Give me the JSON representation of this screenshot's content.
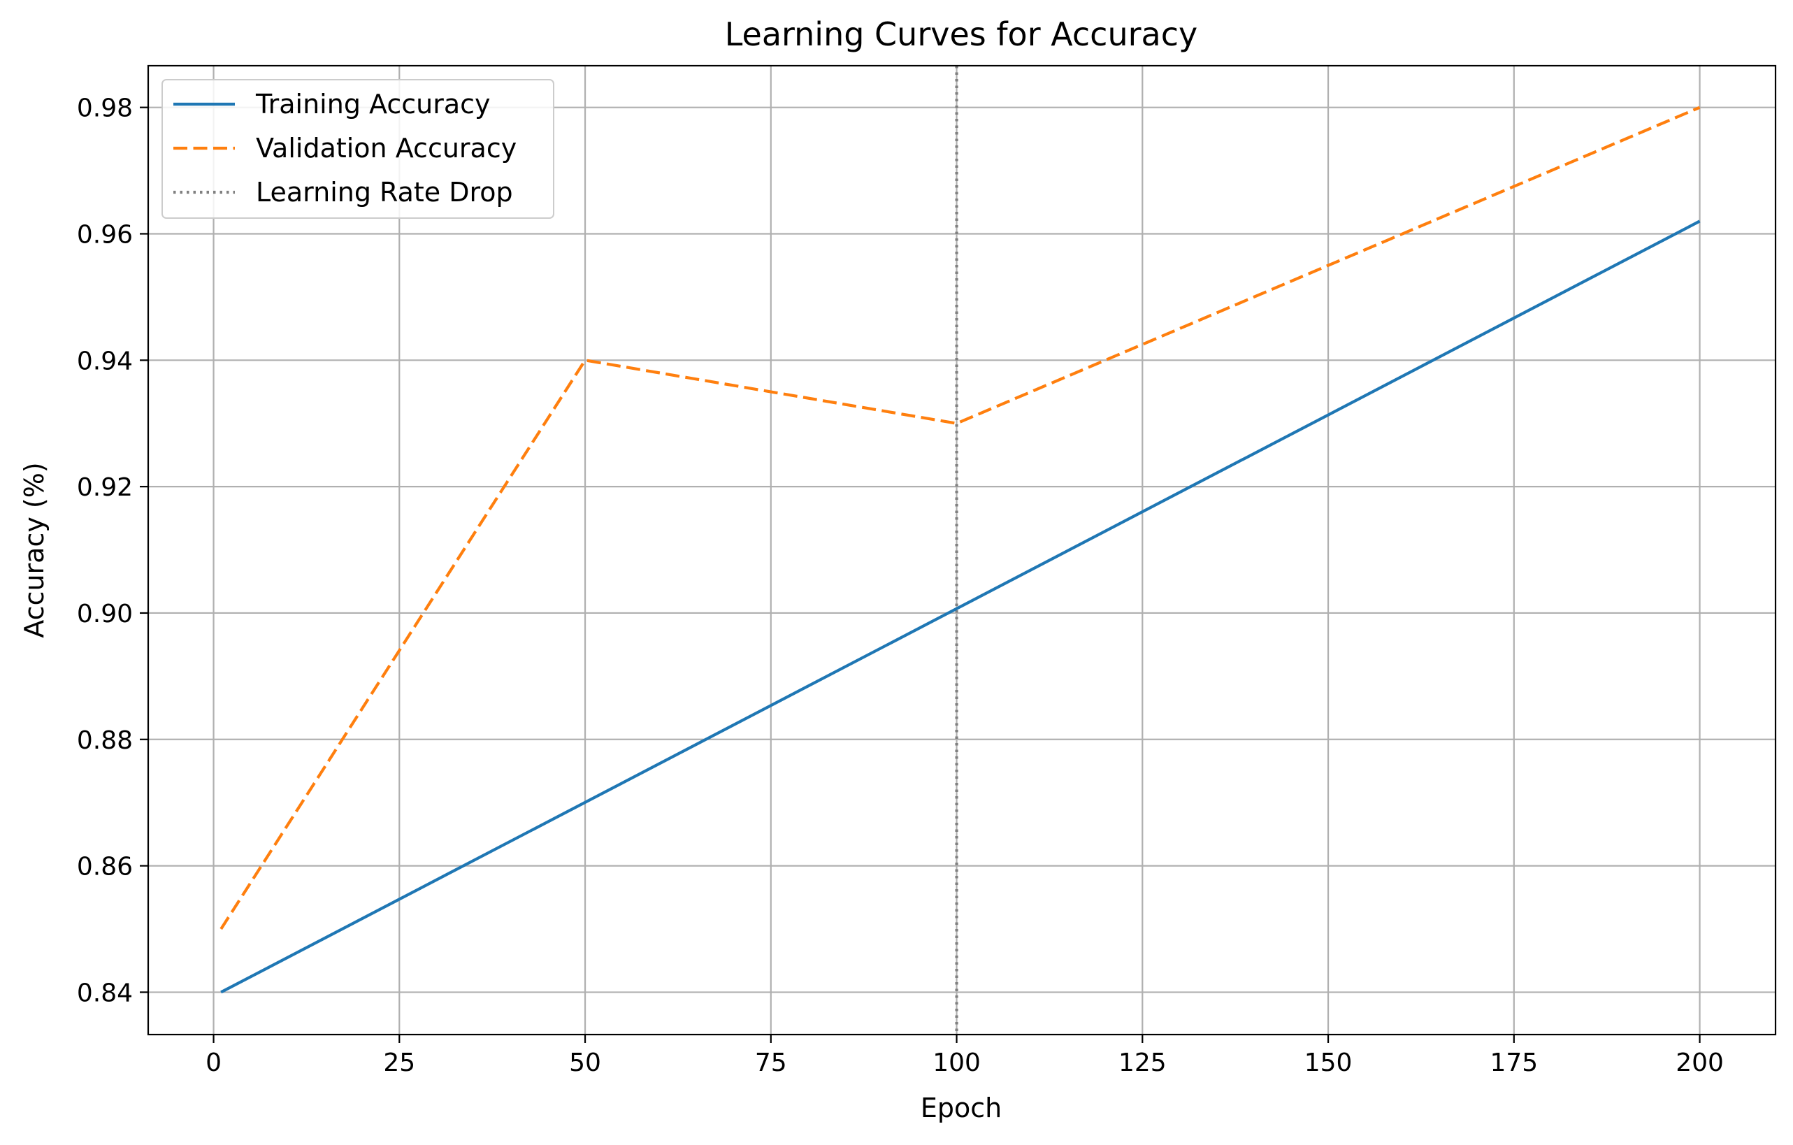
{
  "chart_data": {
    "type": "line",
    "title": "Learning Curves for Accuracy",
    "xlabel": "Epoch",
    "ylabel": "Accuracy (%)",
    "xlim": [
      -8.8,
      210.2
    ],
    "ylim": [
      0.8333,
      0.9866
    ],
    "x_ticks": [
      0,
      25,
      50,
      75,
      100,
      125,
      150,
      175,
      200
    ],
    "y_ticks": [
      0.84,
      0.86,
      0.88,
      0.9,
      0.92,
      0.94,
      0.96,
      0.98
    ],
    "y_tick_labels": [
      "0.84",
      "0.86",
      "0.88",
      "0.90",
      "0.92",
      "0.94",
      "0.96",
      "0.98"
    ],
    "grid": true,
    "legend_position": "upper-left",
    "series": [
      {
        "name": "Training Accuracy",
        "color": "#1f77b4",
        "style": "solid",
        "x": [
          1,
          200
        ],
        "values": [
          0.84,
          0.962
        ]
      },
      {
        "name": "Validation Accuracy",
        "color": "#ff7f0e",
        "style": "dashed",
        "x": [
          1,
          50,
          100,
          200
        ],
        "values": [
          0.85,
          0.94,
          0.93,
          0.98
        ]
      }
    ],
    "vlines": [
      {
        "name": "Learning Rate Drop",
        "x": 100,
        "color": "#808080",
        "style": "dotted"
      }
    ]
  }
}
